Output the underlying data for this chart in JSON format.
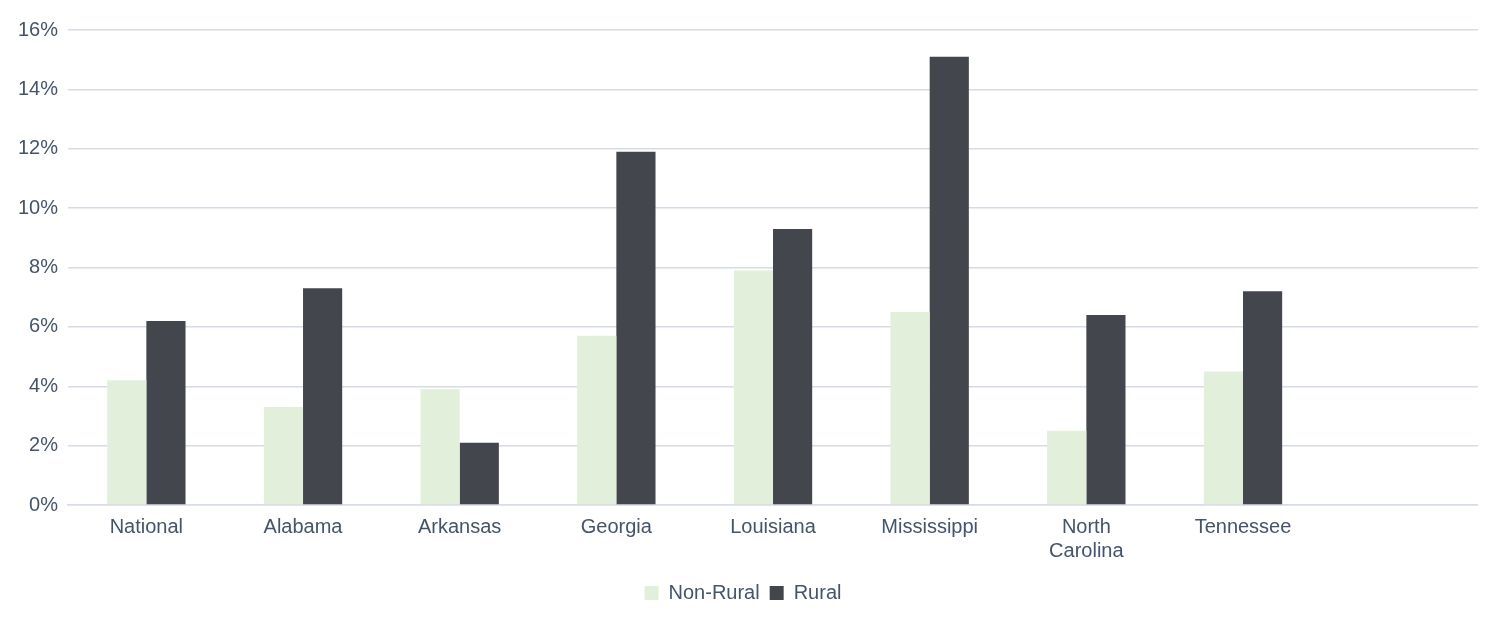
{
  "chart_data": {
    "type": "bar",
    "categories": [
      "National",
      "Alabama",
      "Arkansas",
      "Georgia",
      "Louisiana",
      "Mississippi",
      "North Carolina",
      "Tennessee",
      null
    ],
    "series": [
      {
        "name": "Non-Rural",
        "color": "#e2efda",
        "values": [
          4.2,
          3.3,
          3.9,
          5.7,
          7.9,
          6.5,
          2.5,
          4.5,
          null
        ]
      },
      {
        "name": "Rural",
        "color": "#43464d",
        "values": [
          6.2,
          7.3,
          2.1,
          11.9,
          9.3,
          15.1,
          6.4,
          7.2,
          null
        ]
      }
    ],
    "ylim": [
      0,
      16
    ],
    "yticks": [
      {
        "value": 0,
        "label": "0%"
      },
      {
        "value": 2,
        "label": "2%"
      },
      {
        "value": 4,
        "label": "4%"
      },
      {
        "value": 6,
        "label": "6%"
      },
      {
        "value": 8,
        "label": "8%"
      },
      {
        "value": 10,
        "label": "10%"
      },
      {
        "value": 12,
        "label": "12%"
      },
      {
        "value": 14,
        "label": "14%"
      },
      {
        "value": 16,
        "label": "16%"
      }
    ],
    "grid": "y",
    "legend": "bottom"
  }
}
